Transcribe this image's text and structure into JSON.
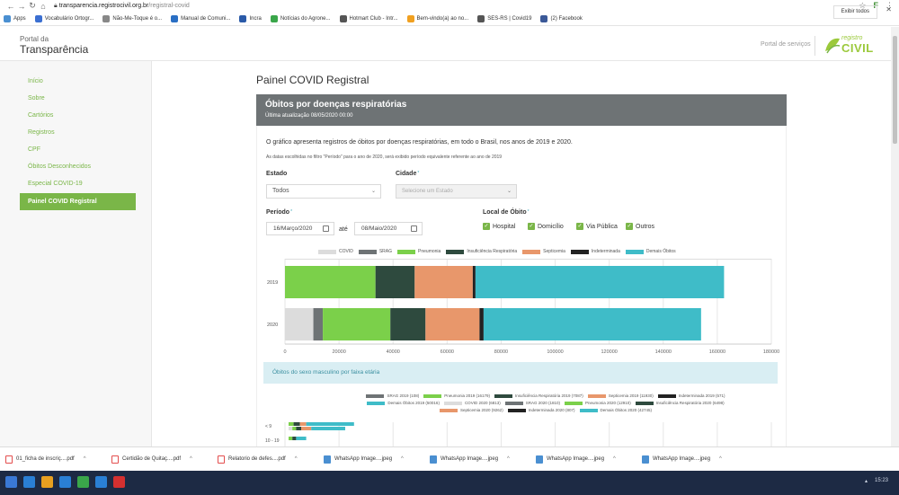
{
  "browser": {
    "url_host": "transparencia.registrocivil.org.br",
    "url_path": "/registral-covid",
    "bookmarks": [
      {
        "label": "Apps",
        "color": "#4a8fd1"
      },
      {
        "label": "Vocabulário Ortogr...",
        "color": "#3b6fd1"
      },
      {
        "label": "Não-Me-Toque é o...",
        "color": "#888888"
      },
      {
        "label": "Manual de Comuni...",
        "color": "#2a6fc4"
      },
      {
        "label": "Incra",
        "color": "#2a5aa8"
      },
      {
        "label": "Notícias do Agrone...",
        "color": "#3aa64a"
      },
      {
        "label": "Hotmart Club - Intr...",
        "color": "#555555"
      },
      {
        "label": "Bem-vindo(a) ao no...",
        "color": "#f0a020"
      },
      {
        "label": "SES-RS | Covid19",
        "color": "#555555"
      },
      {
        "label": "(2) Facebook",
        "color": "#3b5998"
      }
    ]
  },
  "header": {
    "portal_sub": "Portal da",
    "portal_main": "Transparência",
    "services_link": "Portal de serviços",
    "logo_small": "registro",
    "logo_big": "CIVIL"
  },
  "sidebar": {
    "items": [
      {
        "label": "Início"
      },
      {
        "label": "Sobre"
      },
      {
        "label": "Cartórios"
      },
      {
        "label": "Registros"
      },
      {
        "label": "CPF"
      },
      {
        "label": "Óbitos Desconhecidos"
      },
      {
        "label": "Especial COVID-19"
      },
      {
        "label": "Painel COVID Registral"
      }
    ]
  },
  "main": {
    "page_title": "Painel COVID Registral",
    "panel_title": "Óbitos por doenças respiratórias",
    "panel_updated": "Última atualização 08/05/2020 00:00",
    "description": "O gráfico apresenta registros de óbitos por doenças respiratórias, em todo o Brasil, nos anos de 2019 e 2020.",
    "note": "As datas escolhidas no filtro \"Período\" para o ano de 2020, será exibido período equivalente referente ao ano de 2019",
    "estado_label": "Estado",
    "estado_value": "Todos",
    "cidade_label": "Cidade",
    "cidade_placeholder": "Selecione um Estado",
    "periodo_label": "Período",
    "date_from": "16/Março/2020",
    "ate": "até",
    "date_to": "08/Maio/2020",
    "local_label": "Local de Óbito",
    "required_mark": "*",
    "locais": [
      "Hospital",
      "Domicílio",
      "Via Pública",
      "Outros"
    ],
    "sub_section": "Óbitos do sexo masculino por faixa etária"
  },
  "chart_data": [
    {
      "type": "bar",
      "orientation": "horizontal",
      "stacked": true,
      "categories": [
        "2019",
        "2020"
      ],
      "xlim": [
        0,
        180000
      ],
      "x_ticks": [
        "0",
        "20000",
        "40000",
        "60000",
        "80000",
        "100000",
        "120000",
        "140000",
        "160000",
        "180000"
      ],
      "legend_position": "top",
      "series": [
        {
          "name": "COVID",
          "color": "#dcdcdc",
          "values": [
            0,
            10500
          ]
        },
        {
          "name": "SRAG",
          "color": "#6e7375",
          "values": [
            0,
            3500
          ]
        },
        {
          "name": "Pneumonia",
          "color": "#7bd04a",
          "values": [
            33500,
            25000
          ]
        },
        {
          "name": "Insuficiência Respiratória",
          "color": "#2e4a3e",
          "values": [
            14500,
            13000
          ]
        },
        {
          "name": "Septicemia",
          "color": "#e8976b",
          "values": [
            21500,
            20000
          ]
        },
        {
          "name": "Indeterminada",
          "color": "#222222",
          "values": [
            1000,
            1500
          ]
        },
        {
          "name": "Demais Óbitos",
          "color": "#3fbcc8",
          "values": [
            92000,
            80500
          ]
        }
      ]
    },
    {
      "type": "bar",
      "orientation": "horizontal",
      "stacked": true,
      "categories": [
        "< 9",
        "10 - 19"
      ],
      "legend_position": "top",
      "legend": [
        {
          "name": "SRAG 2019 (108)",
          "color": "#6e7375"
        },
        {
          "name": "Pneumonia 2019 (16179)",
          "color": "#7bd04a"
        },
        {
          "name": "Insuficiência Respiratória 2019 (7087)",
          "color": "#2e4a3e"
        },
        {
          "name": "Septicemia 2019 (11930)",
          "color": "#e8976b"
        },
        {
          "name": "Indeterminada 2019 (571)",
          "color": "#222222"
        },
        {
          "name": "Demais Óbitos 2019 (50016)",
          "color": "#3fbcc8"
        },
        {
          "name": "COVID 2020 (6813)",
          "color": "#dcdcdc"
        },
        {
          "name": "SRAG 2020 (1810)",
          "color": "#6e7375"
        },
        {
          "name": "Pneumonia 2020 (12910)",
          "color": "#7bd04a"
        },
        {
          "name": "Insuficiência Respiratória 2020 (6498)",
          "color": "#2e4a3e"
        },
        {
          "name": "Septicemia 2020 (9262)",
          "color": "#e8976b"
        },
        {
          "name": "Indeterminada 2020 (807)",
          "color": "#222222"
        },
        {
          "name": "Demais Óbitos 2020 (42745)",
          "color": "#3fbcc8"
        }
      ],
      "rows": [
        {
          "label": "< 9",
          "segments": [
            {
              "color": "#7bd04a",
              "value": 4
            },
            {
              "color": "#2e4a3e",
              "value": 5
            },
            {
              "color": "#e8976b",
              "value": 5
            },
            {
              "color": "#3fbcc8",
              "value": 38
            }
          ],
          "segments2": [
            {
              "color": "#dcdcdc",
              "value": 3
            },
            {
              "color": "#7bd04a",
              "value": 3
            },
            {
              "color": "#2e4a3e",
              "value": 4
            },
            {
              "color": "#e8976b",
              "value": 8
            },
            {
              "color": "#3fbcc8",
              "value": 27
            }
          ]
        },
        {
          "label": "10 - 19",
          "segments": [
            {
              "color": "#7bd04a",
              "value": 3
            },
            {
              "color": "#2e4a3e",
              "value": 3
            },
            {
              "color": "#3fbcc8",
              "value": 8
            }
          ]
        }
      ]
    }
  ],
  "downloads": [
    {
      "label": "01_ficha de inscriç....pdf",
      "kind": "pdf"
    },
    {
      "label": "Certidão de Quitaç....pdf",
      "kind": "pdf"
    },
    {
      "label": "Relatorio de defes....pdf",
      "kind": "pdf"
    },
    {
      "label": "WhatsApp Image....jpeg",
      "kind": "img"
    },
    {
      "label": "WhatsApp Image....jpeg",
      "kind": "img"
    },
    {
      "label": "WhatsApp Image....jpeg",
      "kind": "img"
    },
    {
      "label": "WhatsApp Image....jpeg",
      "kind": "img"
    }
  ],
  "downloads_show_all": "Exibir todos",
  "taskbar": {
    "clock": "15:23",
    "icons": [
      "#2a7fd4",
      "#e8a020",
      "#2a7fd4",
      "#3aa64a",
      "#2a7fd4",
      "#d43030"
    ]
  }
}
